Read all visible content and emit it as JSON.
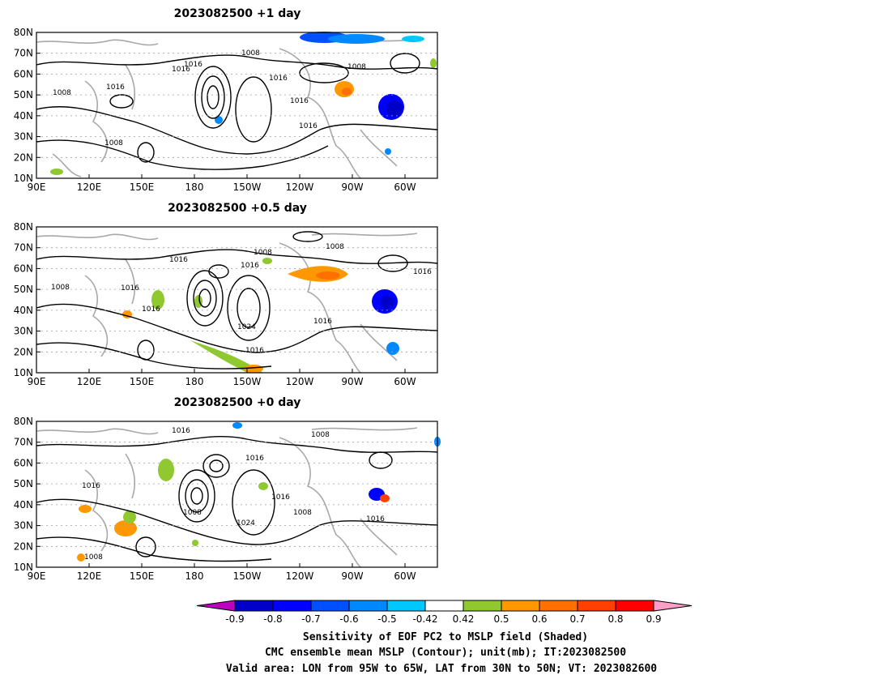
{
  "panels": [
    {
      "title": "2023082500  +1 day",
      "contour_labels": [
        "1008",
        "1016",
        "1016",
        "1016",
        "1016",
        "1008",
        "1008",
        "1016",
        "1016",
        "1008"
      ]
    },
    {
      "title": "2023082500  +0.5 day",
      "contour_labels": [
        "1008",
        "1016",
        "1016",
        "1016",
        "1008",
        "1016",
        "1024",
        "1016",
        "1016",
        "1008",
        "1016"
      ]
    },
    {
      "title": "2023082500  +0 day",
      "contour_labels": [
        "1016",
        "1008",
        "1016",
        "1016",
        "1008",
        "1024",
        "1016",
        "1008",
        "1016",
        "1008"
      ]
    }
  ],
  "lat_ticks": [
    "80N",
    "70N",
    "60N",
    "50N",
    "40N",
    "30N",
    "20N",
    "10N"
  ],
  "lon_ticks": [
    "90E",
    "120E",
    "150E",
    "180",
    "150W",
    "120W",
    "90W",
    "60W"
  ],
  "colorbar": {
    "labels": [
      "-0.9",
      "-0.8",
      "-0.7",
      "-0.6",
      "-0.5",
      "-0.42",
      "0.42",
      "0.5",
      "0.6",
      "0.7",
      "0.8",
      "0.9"
    ],
    "colors": [
      "#c000c0",
      "#0000c8",
      "#0000ff",
      "#0050ff",
      "#0088ff",
      "#00c8ff",
      "#ffffff",
      "#90c830",
      "#ff9800",
      "#ff7000",
      "#ff4000",
      "#ff0000",
      "#ff9ec8"
    ]
  },
  "caption": {
    "line1": "Sensitivity of EOF PC2 to MSLP field (Shaded)",
    "line2": "CMC ensemble mean MSLP (Contour); unit(mb); IT:2023082500",
    "line3": "Valid area: LON from 95W to 65W, LAT from 30N to 50N; VT: 2023082600"
  },
  "colors": {
    "contour": "#000000",
    "coast": "#a8a8a8",
    "grid": "#a0a0a0"
  }
}
